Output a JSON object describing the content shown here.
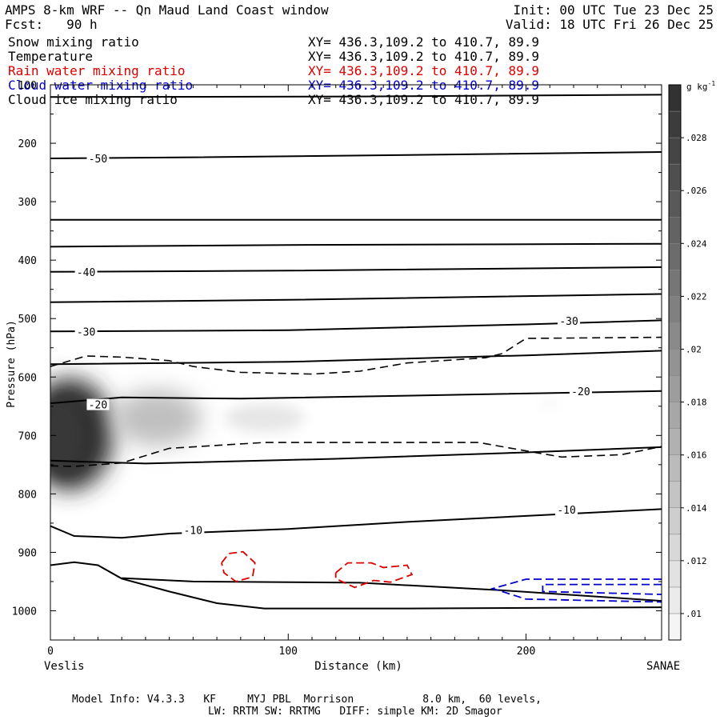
{
  "header": {
    "title": "AMPS 8-km WRF -- Qn Maud Land Coast window",
    "init": "Init: 00 UTC Tue 23 Dec 25",
    "fcst": "Fcst:   90 h",
    "valid": "Valid: 18 UTC Fri 26 Dec 25"
  },
  "legend": [
    {
      "name": "Snow mixing ratio",
      "xy": "XY= 436.3,109.2 to 410.7, 89.9",
      "color": "#000000"
    },
    {
      "name": "Temperature",
      "xy": "XY= 436.3,109.2 to 410.7, 89.9",
      "color": "#000000"
    },
    {
      "name": "Rain water mixing ratio",
      "xy": "XY= 436.3,109.2 to 410.7, 89.9",
      "color": "#dd0000"
    },
    {
      "name": "Cloud water mixing ratio",
      "xy": "XY= 436.3,109.2 to 410.7, 89.9",
      "color": "#0000cc"
    },
    {
      "name": "Cloud ice mixing ratio",
      "xy": "XY= 436.3,109.2 to 410.7, 89.9",
      "color": "#000000"
    }
  ],
  "footer": {
    "line1": "Model Info: V4.3.3   KF     MYJ PBL  Morrison           8.0 km,  60 levels,",
    "line2": "LW: RRTM SW: RRTMG   DIFF: simple KM: 2D Smagor"
  },
  "chart_data": {
    "type": "contour_cross_section",
    "xlabel": "Distance (km)",
    "ylabel": "Pressure (hPa)",
    "xlim": [
      0,
      257
    ],
    "ylim": [
      1050,
      100
    ],
    "x_ticks": [
      0,
      100,
      200
    ],
    "y_ticks": [
      100,
      200,
      300,
      400,
      500,
      600,
      700,
      800,
      900,
      1000
    ],
    "left_endpoint": "Veslis",
    "right_endpoint": "SANAE",
    "colorbar": {
      "unit": "g kg",
      "unit_exp": "-1",
      "ticks": [
        ".01",
        ".012",
        ".014",
        ".016",
        ".018",
        ".02",
        ".022",
        ".024",
        ".026",
        ".028"
      ],
      "levels": [
        0.009,
        0.01,
        0.011,
        0.012,
        0.013,
        0.014,
        0.015,
        0.016,
        0.017,
        0.018,
        0.019,
        0.02,
        0.021,
        0.022,
        0.023,
        0.024,
        0.025,
        0.026,
        0.027,
        0.028,
        0.029,
        0.03
      ]
    },
    "temperature_labels": [
      {
        "label": "-50",
        "x": 20,
        "p": 226
      },
      {
        "label": "-40",
        "x": 15,
        "p": 420
      },
      {
        "label": "-30",
        "x": 15,
        "p": 522
      },
      {
        "label": "-30",
        "x": 218,
        "p": 504
      },
      {
        "label": "-20",
        "x": 20,
        "p": 647
      },
      {
        "label": "-20",
        "x": 223,
        "p": 624
      },
      {
        "label": "-10",
        "x": 60,
        "p": 862
      },
      {
        "label": "-10",
        "x": 217,
        "p": 827
      }
    ],
    "temperature_isotherms": [
      [
        [
          0,
          121
        ],
        [
          130,
          120
        ],
        [
          257,
          117
        ]
      ],
      [
        [
          0,
          226
        ],
        [
          60,
          224
        ],
        [
          150,
          220
        ],
        [
          257,
          215
        ]
      ],
      [
        [
          0,
          331
        ],
        [
          257,
          331
        ]
      ],
      [
        [
          0,
          377
        ],
        [
          100,
          374
        ],
        [
          257,
          372
        ]
      ],
      [
        [
          0,
          420
        ],
        [
          100,
          418
        ],
        [
          257,
          412
        ]
      ],
      [
        [
          0,
          472
        ],
        [
          100,
          468
        ],
        [
          257,
          458
        ]
      ],
      [
        [
          0,
          522
        ],
        [
          100,
          520
        ],
        [
          200,
          510
        ],
        [
          257,
          503
        ]
      ],
      [
        [
          0,
          578
        ],
        [
          100,
          574
        ],
        [
          200,
          563
        ],
        [
          257,
          555
        ]
      ],
      [
        [
          0,
          645
        ],
        [
          30,
          635
        ],
        [
          80,
          637
        ],
        [
          150,
          632
        ],
        [
          257,
          624
        ]
      ],
      [
        [
          0,
          743
        ],
        [
          15,
          745
        ],
        [
          40,
          748
        ],
        [
          120,
          740
        ],
        [
          200,
          729
        ],
        [
          257,
          720
        ]
      ],
      [
        [
          0,
          855
        ],
        [
          10,
          872
        ],
        [
          30,
          875
        ],
        [
          50,
          868
        ],
        [
          100,
          860
        ],
        [
          150,
          848
        ],
        [
          257,
          826
        ]
      ],
      [
        [
          0,
          922
        ],
        [
          10,
          917
        ],
        [
          20,
          922
        ],
        [
          30,
          945
        ],
        [
          50,
          967
        ],
        [
          70,
          987
        ],
        [
          90,
          996
        ],
        [
          150,
          996
        ],
        [
          257,
          994
        ]
      ],
      [
        [
          30,
          944
        ],
        [
          60,
          950
        ],
        [
          130,
          952
        ],
        [
          190,
          965
        ],
        [
          257,
          983
        ]
      ]
    ],
    "snow_dashed_contours": [
      [
        [
          0,
          582
        ],
        [
          15,
          564
        ],
        [
          30,
          566
        ],
        [
          50,
          572
        ],
        [
          60,
          582
        ],
        [
          80,
          592
        ],
        [
          110,
          595
        ],
        [
          130,
          590
        ],
        [
          150,
          576
        ],
        [
          183,
          567
        ],
        [
          190,
          560
        ],
        [
          200,
          534
        ],
        [
          257,
          532
        ]
      ],
      [
        [
          0,
          752
        ],
        [
          10,
          753
        ],
        [
          30,
          747
        ],
        [
          50,
          722
        ],
        [
          90,
          712
        ],
        [
          120,
          712
        ],
        [
          180,
          712
        ],
        [
          205,
          730
        ],
        [
          215,
          737
        ],
        [
          240,
          733
        ],
        [
          257,
          719
        ]
      ]
    ],
    "rain_contours": [
      [
        [
          72,
          918
        ],
        [
          75,
          902
        ],
        [
          81,
          899
        ],
        [
          86,
          918
        ],
        [
          85,
          942
        ],
        [
          78,
          950
        ],
        [
          73,
          935
        ],
        [
          72,
          918
        ]
      ],
      [
        [
          120,
          935
        ],
        [
          125,
          918
        ],
        [
          135,
          918
        ],
        [
          140,
          926
        ],
        [
          150,
          922
        ],
        [
          152,
          938
        ],
        [
          143,
          951
        ],
        [
          136,
          948
        ],
        [
          128,
          960
        ],
        [
          120,
          945
        ],
        [
          120,
          935
        ]
      ]
    ],
    "cloud_water_contours": [
      [
        [
          257,
          946
        ],
        [
          200,
          946
        ],
        [
          186,
          962
        ],
        [
          200,
          980
        ],
        [
          257,
          985
        ]
      ],
      [
        [
          257,
          955
        ],
        [
          207,
          955
        ],
        [
          207,
          967
        ],
        [
          257,
          972
        ]
      ]
    ],
    "shaded_blobs": [
      {
        "x": 8,
        "p": 698,
        "value": 0.03
      },
      {
        "x": 45,
        "p": 670,
        "value": 0.015
      },
      {
        "x": 90,
        "p": 670,
        "value": 0.011
      },
      {
        "x": 210,
        "p": 645,
        "value": 0.009
      }
    ]
  }
}
